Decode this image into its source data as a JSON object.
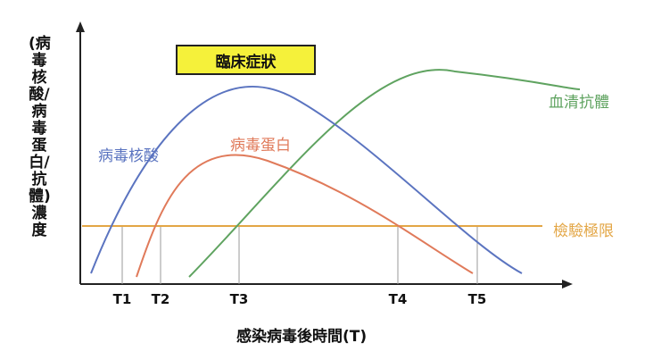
{
  "title_badge": "臨床症狀",
  "y_axis_label": "(病毒核酸/病毒蛋白/抗體)濃度",
  "x_axis_label": "感染病毒後時間(T)",
  "curves": {
    "viral_nucleic_acid": {
      "label": "病毒核酸",
      "color": "#5b74c0"
    },
    "viral_protein": {
      "label": "病毒蛋白",
      "color": "#e07a5a"
    },
    "serum_antibody": {
      "label": "血清抗體",
      "color": "#5fa360"
    }
  },
  "detection_limit": {
    "label": "檢驗極限",
    "color": "#e3a645"
  },
  "time_points": [
    "T1",
    "T2",
    "T3",
    "T4",
    "T5"
  ]
}
